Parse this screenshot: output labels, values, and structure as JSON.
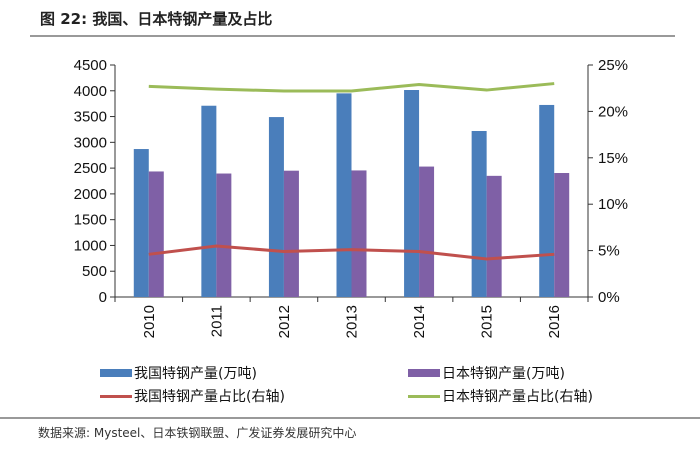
{
  "title": "图 22: 我国、日本特钢产量及占比",
  "source": "数据来源: Mysteel、日本铁钢联盟、广发证券发展研究中心",
  "chart_data": {
    "type": "bar+line",
    "categories": [
      "2010",
      "2011",
      "2012",
      "2013",
      "2014",
      "2015",
      "2016"
    ],
    "y_left": {
      "lim": [
        0,
        4500
      ],
      "ticks": [
        "0",
        "500",
        "1000",
        "1500",
        "2000",
        "2500",
        "3000",
        "3500",
        "4000",
        "4500"
      ]
    },
    "y_right": {
      "lim": [
        0,
        25
      ],
      "ticks": [
        "0%",
        "5%",
        "10%",
        "15%",
        "20%",
        "25%"
      ]
    },
    "grid": false,
    "legend_placement": "bottom",
    "series": [
      {
        "name": "我国特钢产量(万吨)",
        "type": "bar",
        "axis": "left",
        "color": "#4a7ebb",
        "values": [
          2870,
          3710,
          3490,
          3950,
          4015,
          3220,
          3725
        ]
      },
      {
        "name": "日本特钢产量(万吨)",
        "type": "bar",
        "axis": "left",
        "color": "#7f60a6",
        "values": [
          2435,
          2395,
          2450,
          2455,
          2530,
          2350,
          2405
        ]
      },
      {
        "name": "我国特钢产量占比(右轴)",
        "type": "line",
        "axis": "right",
        "color": "#c0504d",
        "values": [
          4.6,
          5.5,
          4.9,
          5.1,
          4.9,
          4.1,
          4.6
        ]
      },
      {
        "name": "日本特钢产量占比(右轴)",
        "type": "line",
        "axis": "right",
        "color": "#9bbb59",
        "values": [
          22.7,
          22.4,
          22.2,
          22.2,
          22.9,
          22.3,
          23.0
        ]
      }
    ]
  }
}
